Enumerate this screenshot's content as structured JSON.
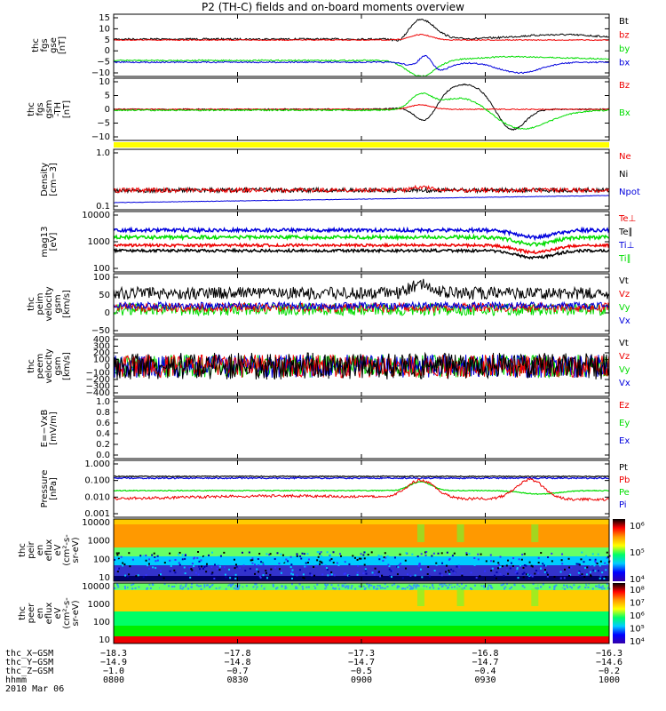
{
  "title": "P2 (TH-C) fields and on-board moments overview",
  "date": "2010 Mar 06",
  "colors": {
    "black": "#000000",
    "red": "#ee0000",
    "green": "#00dd00",
    "blue": "#0000dd",
    "yellow": "#ffff00"
  },
  "chart_data": [
    {
      "type": "line",
      "ylabel": [
        "thc",
        "fgs",
        "gse",
        "[nT]"
      ],
      "yticks": [
        "15",
        "10",
        "5",
        "0",
        "−5",
        "−10"
      ],
      "series": [
        {
          "name": "Bt",
          "color": "black"
        },
        {
          "name": "bz",
          "color": "red"
        },
        {
          "name": "by",
          "color": "green"
        },
        {
          "name": "bx",
          "color": "blue"
        }
      ]
    },
    {
      "type": "line",
      "ylabel": [
        "thc",
        "fgs",
        "gsm",
        "-TH",
        "[nT]"
      ],
      "yticks": [
        "10",
        "5",
        "0",
        "−5",
        "−10"
      ],
      "series": [
        {
          "name": "Bz",
          "color": "red"
        },
        {
          "name": "Bx",
          "color": "green"
        }
      ]
    },
    {
      "type": "line",
      "ylabel": [
        "Density",
        "[cm−3]"
      ],
      "yticks": [
        "1.0",
        "0.1"
      ],
      "log": true,
      "series": [
        {
          "name": "Ne",
          "color": "red"
        },
        {
          "name": "Ni",
          "color": "black"
        },
        {
          "name": "Npot",
          "color": "blue"
        }
      ]
    },
    {
      "type": "line",
      "ylabel": [
        "mag13",
        "[eV]"
      ],
      "yticks": [
        "10000",
        "1000",
        "100"
      ],
      "log": true,
      "series": [
        {
          "name": "Te⊥",
          "color": "red"
        },
        {
          "name": "Te∥",
          "color": "black"
        },
        {
          "name": "Ti⊥",
          "color": "blue"
        },
        {
          "name": "Ti∥",
          "color": "green"
        }
      ]
    },
    {
      "type": "line",
      "ylabel": [
        "thc",
        "peim",
        "velocity",
        "gsm",
        "[km/s]"
      ],
      "yticks": [
        "100",
        "50",
        "0",
        "−50"
      ],
      "series": [
        {
          "name": "Vt",
          "color": "black"
        },
        {
          "name": "Vz",
          "color": "red"
        },
        {
          "name": "Vy",
          "color": "green"
        },
        {
          "name": "Vx",
          "color": "blue"
        }
      ]
    },
    {
      "type": "line",
      "ylabel": [
        "thc",
        "peem",
        "velocity",
        "gsm",
        "[km/s]"
      ],
      "yticks": [
        "400",
        "300",
        "200",
        "100",
        "0",
        "−100",
        "−200",
        "−300",
        "−400"
      ],
      "series": [
        {
          "name": "Vt",
          "color": "black"
        },
        {
          "name": "Vz",
          "color": "red"
        },
        {
          "name": "Vy",
          "color": "green"
        },
        {
          "name": "Vx",
          "color": "blue"
        }
      ]
    },
    {
      "type": "line",
      "ylabel": [
        "E=−VxB",
        "[mV/m]"
      ],
      "yticks": [
        "1.0",
        "0.8",
        "0.6",
        "0.4",
        "0.2",
        "0.0"
      ],
      "series": [
        {
          "name": "Ez",
          "color": "red"
        },
        {
          "name": "Ey",
          "color": "green"
        },
        {
          "name": "Ex",
          "color": "blue"
        }
      ]
    },
    {
      "type": "line",
      "ylabel": [
        "Pressure",
        "[nPa]"
      ],
      "yticks": [
        "1.000",
        "0.100",
        "0.010",
        "0.001"
      ],
      "log": true,
      "series": [
        {
          "name": "Pt",
          "color": "black"
        },
        {
          "name": "Pb",
          "color": "red"
        },
        {
          "name": "Pe",
          "color": "green"
        },
        {
          "name": "Pi",
          "color": "blue"
        }
      ]
    },
    {
      "type": "heatmap",
      "ylabel": [
        "thc",
        "peir",
        "en",
        "eflux",
        "eV",
        "(cm²-s-",
        "sr-eV)"
      ],
      "yticks": [
        "10000",
        "1000",
        "100",
        "10"
      ],
      "colorbar": [
        "10⁶",
        "10⁵",
        "10⁴"
      ]
    },
    {
      "type": "heatmap",
      "ylabel": [
        "thc",
        "peer",
        "en",
        "eflux",
        "eV",
        "(cm²-s-",
        "sr-eV)"
      ],
      "yticks": [
        "10000",
        "1000",
        "100",
        "10"
      ],
      "colorbar": [
        "10⁸",
        "10⁷",
        "10⁶",
        "10⁵",
        "10⁴"
      ]
    }
  ],
  "footer": {
    "rows": [
      {
        "label": "thc_X−GSM",
        "values": [
          "−18.3",
          "−17.8",
          "−17.3",
          "−16.8",
          "−16.3"
        ]
      },
      {
        "label": "thc_Y−GSM",
        "values": [
          "−14.9",
          "−14.8",
          "−14.7",
          "−14.7",
          "−14.6"
        ]
      },
      {
        "label": "thc_Z−GSM",
        "values": [
          "−1.0",
          "−0.7",
          "−0.5",
          "−0.4",
          "−0.2"
        ]
      },
      {
        "label": "hhmm",
        "values": [
          "0800",
          "0830",
          "0900",
          "0930",
          "1000"
        ]
      }
    ]
  }
}
